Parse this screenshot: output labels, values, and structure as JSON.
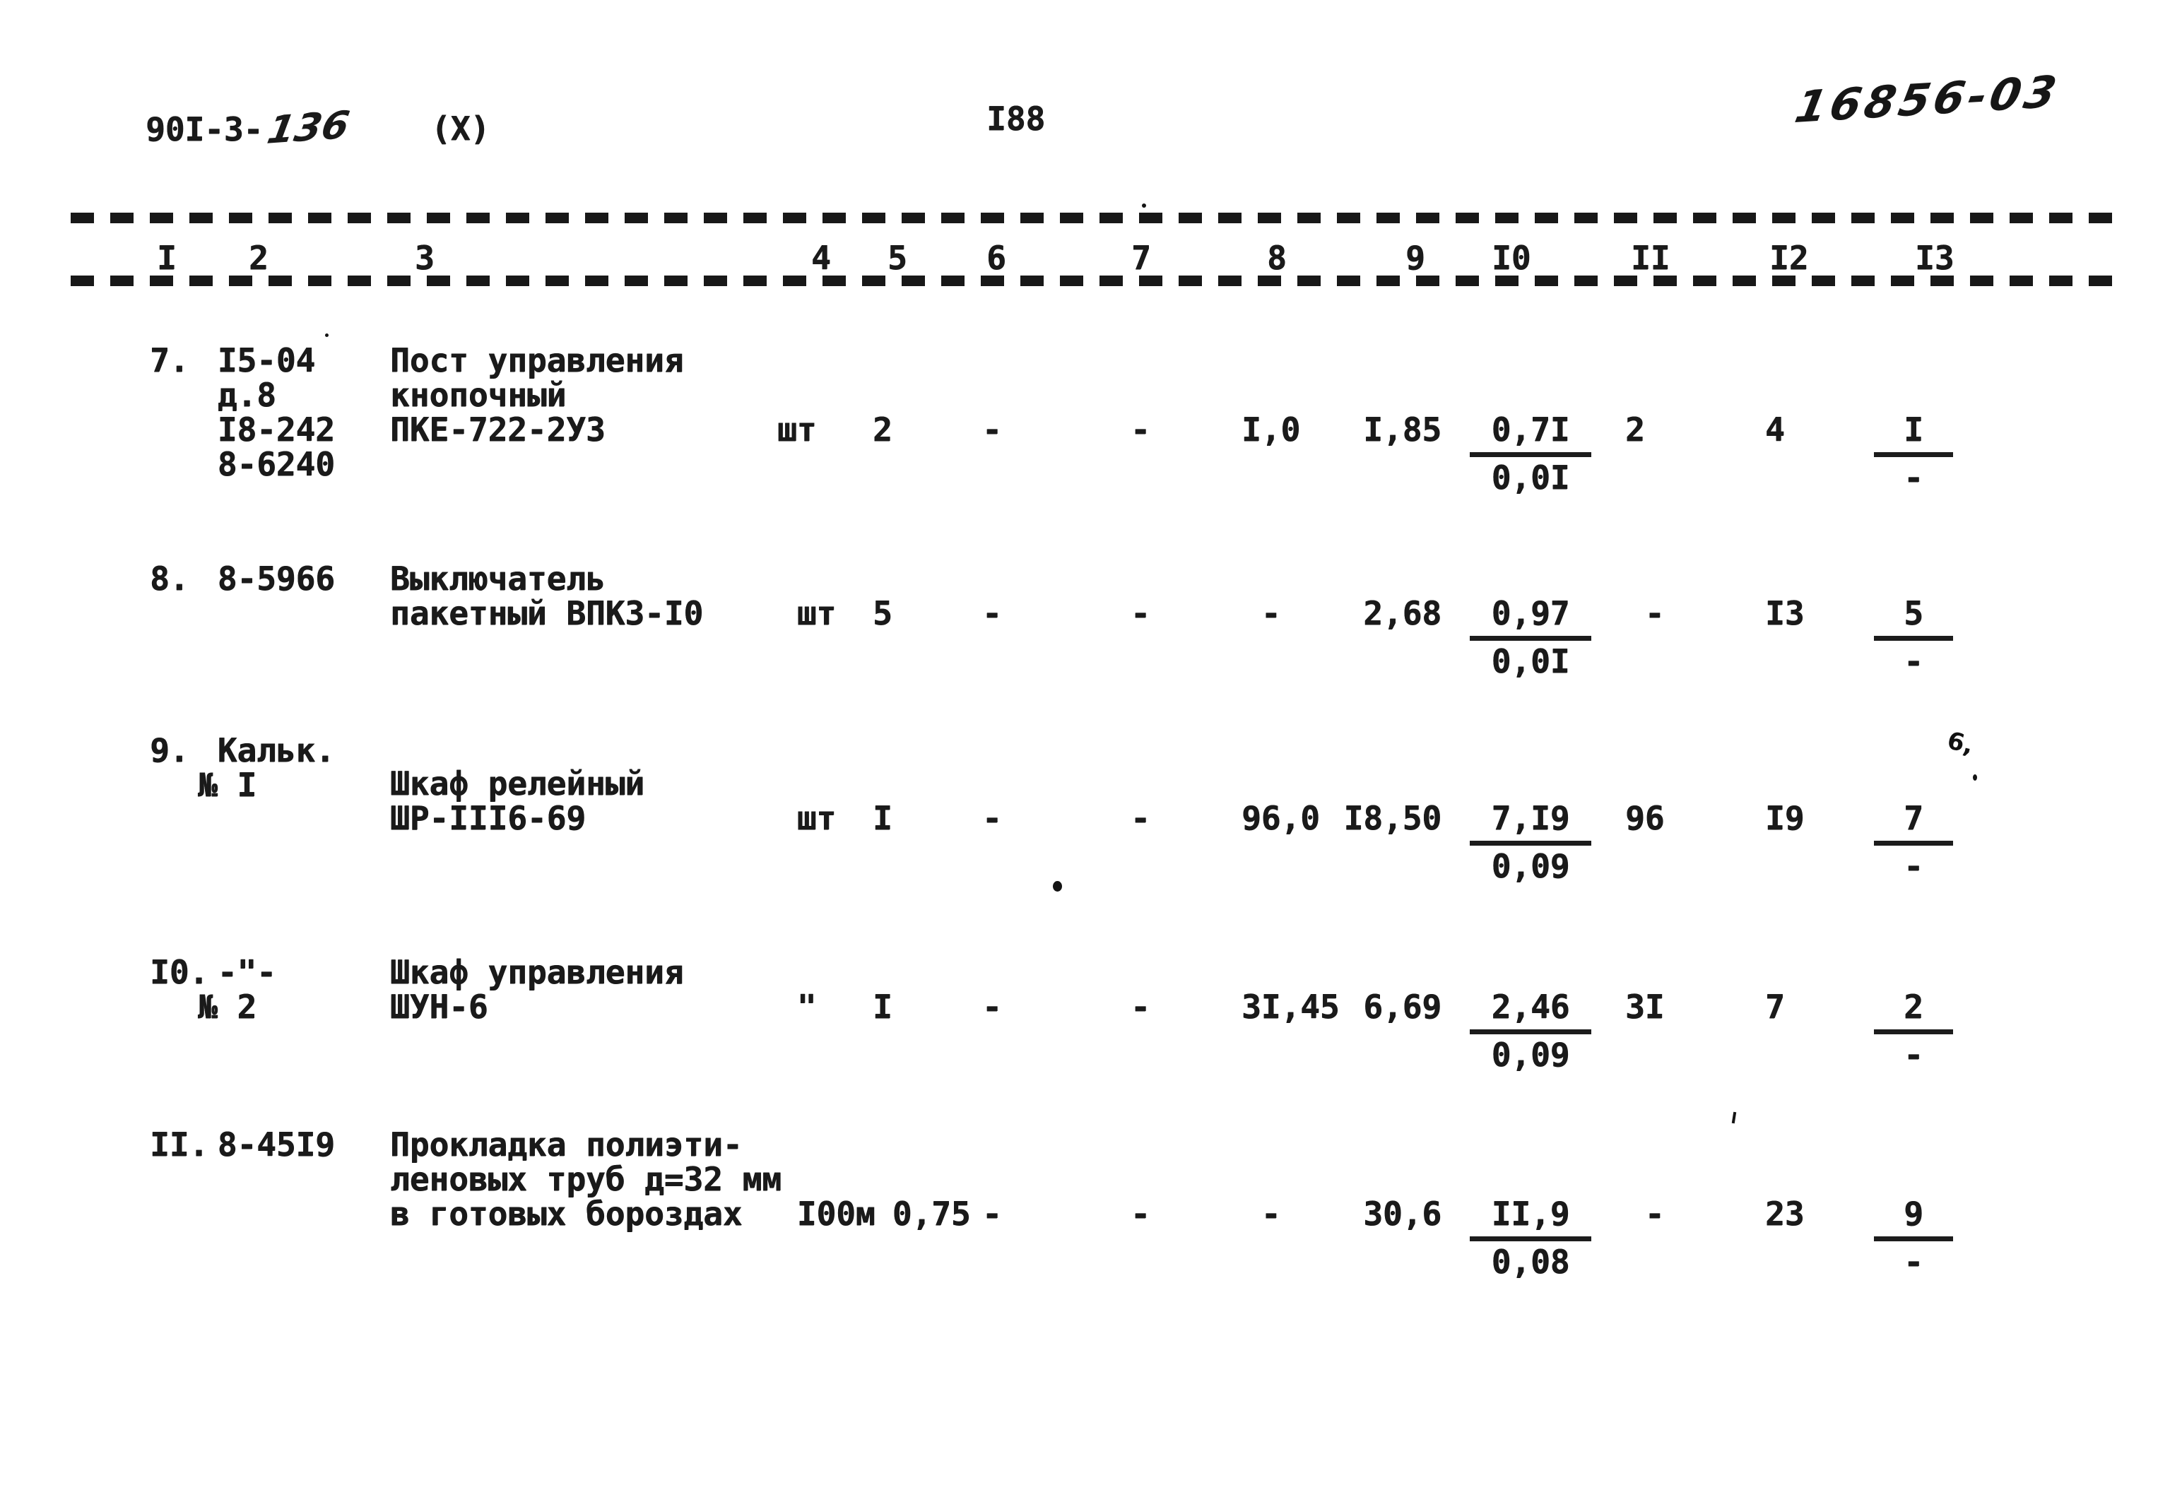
{
  "page": {
    "doc_number_typed": "90I-3-",
    "doc_number_handwritten": "136",
    "sheet_marker": "(X)",
    "page_number": "I88",
    "stamp_number": "16856-03"
  },
  "table": {
    "column_headers": [
      "I",
      "2",
      "3",
      "4",
      "5",
      "6",
      "7",
      "8",
      "9",
      "I0",
      "II",
      "I2",
      "I3"
    ],
    "rows": [
      {
        "num": "7.",
        "code": " I5-04\n д.8\n I8-242\n 8-6240",
        "name": "Пост управления\nкнопочный\nПКЕ-722-2У3",
        "unit": "шт",
        "c5": "2",
        "c6": "-",
        "c7": "-",
        "c8": "I,0",
        "c9": "I,85",
        "c10": {
          "top": "0,7I",
          "bottom": "0,0I"
        },
        "c11": "2",
        "c12": "4",
        "c13": {
          "top": "I",
          "bottom": "-"
        }
      },
      {
        "num": "8.",
        "code": " 8-5966",
        "name": "Выключатель\nпакетный ВПК3-I0",
        "unit": " шт",
        "c5": "5",
        "c6": "-",
        "c7": "-",
        "c8": " -",
        "c9": "2,68",
        "c10": {
          "top": "0,97",
          "bottom": "0,0I"
        },
        "c11": " -",
        "c12": "I3",
        "c13": {
          "top": "5",
          "bottom": "-"
        }
      },
      {
        "num": "9.",
        "code": " Кальк.\n№ I",
        "name": "Шкаф релейный\nШР-III6-69",
        "unit": " шт",
        "c5": "I",
        "c6": "-",
        "c7": "-",
        "c8": "96,0",
        "c9": "I8,50",
        "c10": {
          "top": "7,I9",
          "bottom": "0,09"
        },
        "c11": "96",
        "c12": "I9",
        "c13": {
          "top": "7",
          "bottom": "-"
        }
      },
      {
        "num": "I0.",
        "code": " -\"-\n№ 2",
        "name": "Шкаф управления\nШУН-6",
        "unit": " \"",
        "c5": "I",
        "c6": "-",
        "c7": "-",
        "c8": "3I,45",
        "c9": "6,69",
        "c10": {
          "top": "2,46",
          "bottom": "0,09"
        },
        "c11": "3I",
        "c12": "7",
        "c13": {
          "top": "2",
          "bottom": "-"
        }
      },
      {
        "num": "II.",
        "code": " 8-45I9",
        "name": "Прокладка полиэти-\nленовых труб д=32 мм\nв готовых бороздах",
        "unit": " I00м",
        "c5": " 0,75",
        "c6": "-",
        "c7": "-",
        "c8": " -",
        "c9": "30,6",
        "c10": {
          "top": "II,9",
          "bottom": "0,08"
        },
        "c11": " -",
        "c12": "23",
        "c13": {
          "top": "9",
          "bottom": "-"
        }
      }
    ]
  },
  "marks": {
    "ink_blot": "6,"
  }
}
